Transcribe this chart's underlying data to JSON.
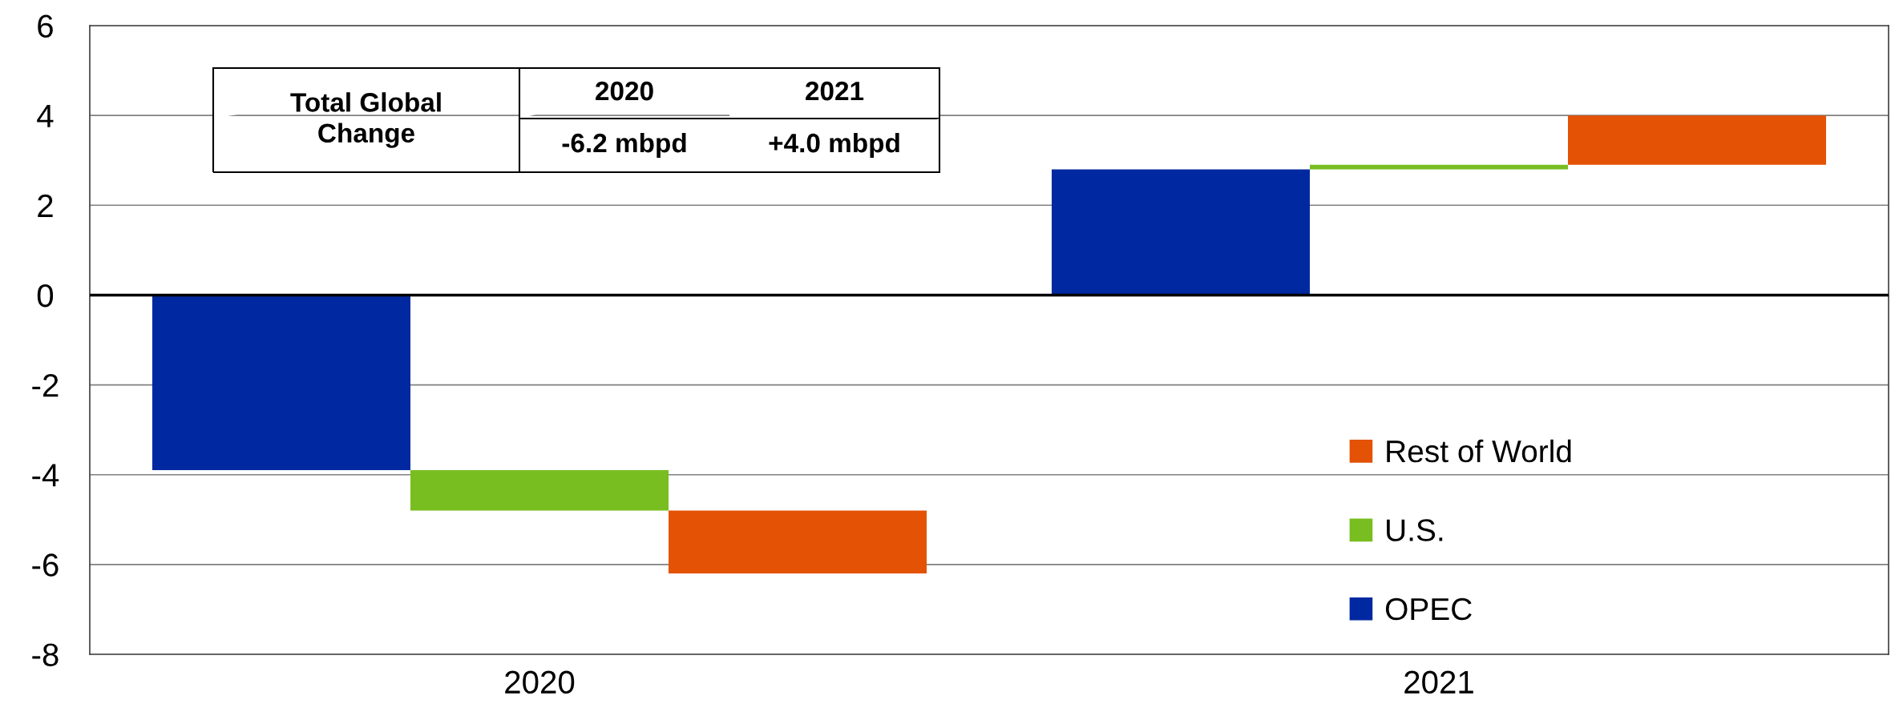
{
  "chart_data": {
    "type": "bar",
    "categories": [
      "2020",
      "2021"
    ],
    "series": [
      {
        "name": "OPEC",
        "color": "#0028a0",
        "values": [
          -3.9,
          2.8
        ],
        "base": [
          0,
          0
        ]
      },
      {
        "name": "U.S.",
        "color": "#78be20",
        "values": [
          -0.9,
          0.1
        ],
        "base": [
          -3.9,
          2.8
        ]
      },
      {
        "name": "Rest of World",
        "color": "#e35205",
        "values": [
          -1.4,
          1.1
        ],
        "base": [
          -4.8,
          2.9
        ]
      }
    ],
    "ylim": [
      -8,
      6
    ],
    "yticks": [
      -8,
      -6,
      -4,
      -2,
      0,
      2,
      4,
      6
    ],
    "grid": "y",
    "legend": "bottom right",
    "ref_lines": [
      {
        "axis": "y",
        "value": 0,
        "color": "#000000"
      }
    ],
    "annotations": [
      "Total Global\nChange",
      "2020",
      "2021",
      "-6.2 mbpd",
      "+4.0 mbpd"
    ]
  }
}
